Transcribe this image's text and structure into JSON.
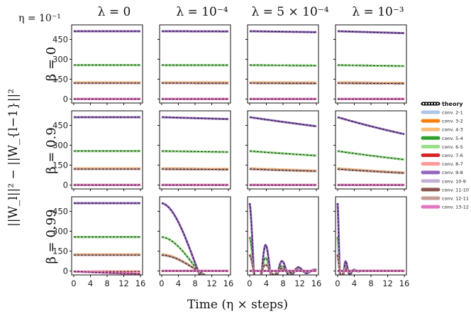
{
  "chart_data": {
    "type": "line",
    "eta_label": "η = 10⁻¹",
    "ylabel": "||W_l||² − ||W_{l−1}||²",
    "xlabel": "Time (η × steps)",
    "column_titles": [
      "λ = 0",
      "λ = 10⁻⁴",
      "λ = 5 × 10⁻⁴",
      "λ = 10⁻³"
    ],
    "row_titles": [
      "β = 0",
      "β = 0.9",
      "β = 0.99"
    ],
    "xticks": [
      0,
      4,
      8,
      12,
      16
    ],
    "yticks": [
      0,
      150,
      300,
      450
    ],
    "xlim": [
      -0.5,
      16.5
    ],
    "ylim": [
      -30,
      560
    ],
    "lambdas": [
      0,
      0.0001,
      0.0005,
      0.001
    ],
    "betas": [
      0,
      0.9,
      0.99
    ],
    "legend": {
      "theory_label": "theory",
      "series": [
        {
          "name": "conv. 2-1",
          "color": "#aec7e8",
          "init": 0
        },
        {
          "name": "conv. 3-2",
          "color": "#ff7f0e",
          "init": 125
        },
        {
          "name": "conv. 4-3",
          "color": "#ffbb78",
          "init": 125
        },
        {
          "name": "conv. 5-4",
          "color": "#2ca02c",
          "init": 256
        },
        {
          "name": "conv. 6-5",
          "color": "#98df8a",
          "init": 256
        },
        {
          "name": "conv. 7-6",
          "color": "#d62728",
          "init": 0
        },
        {
          "name": "conv. 8-7",
          "color": "#ff9896",
          "init": 0
        },
        {
          "name": "conv. 9-8",
          "color": "#9467bd",
          "init": 512
        },
        {
          "name": "conv. 10-9",
          "color": "#c5b0d5",
          "init": 0
        },
        {
          "name": "conv. 11-10",
          "color": "#8c564b",
          "init": 120
        },
        {
          "name": "conv. 12-11",
          "color": "#c49c94",
          "init": 120
        },
        {
          "name": "conv. 13-12",
          "color": "#e377c2",
          "init": 0
        }
      ]
    }
  }
}
